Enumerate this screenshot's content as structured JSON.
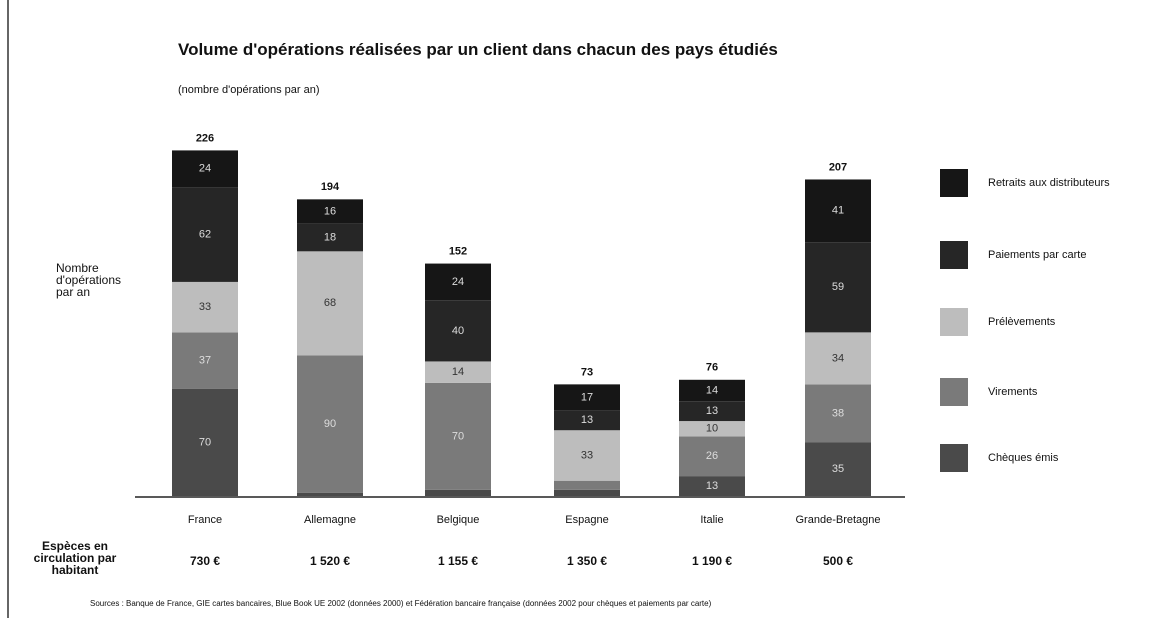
{
  "chart_data": {
    "type": "stacked_bar",
    "title": "Volume d'opérations réalisées par un client dans chacun des pays étudiés",
    "subtitle": "(nombre d'opérations par an)",
    "y_label": "Nombre d'opérations par an",
    "categories": [
      "France",
      "Allemagne",
      "Belgique",
      "Espagne",
      "Italie",
      "Grande-Bretagne"
    ],
    "totals": [
      226,
      194,
      152,
      73,
      76,
      207
    ],
    "series": [
      {
        "name": "Chèques émis",
        "color": "#4a4a4a",
        "values": [
          70,
          2,
          4,
          4,
          13,
          35
        ]
      },
      {
        "name": "Virements",
        "color": "#7a7a7a",
        "values": [
          37,
          90,
          70,
          6,
          26,
          38
        ]
      },
      {
        "name": "Prélèvements",
        "color": "#bdbdbd",
        "values": [
          33,
          68,
          14,
          33,
          10,
          34
        ]
      },
      {
        "name": "Paiements par carte",
        "color": "#262626",
        "values": [
          62,
          18,
          40,
          13,
          13,
          59
        ]
      },
      {
        "name": "Retraits aux distributeurs",
        "color": "#161616",
        "values": [
          24,
          16,
          24,
          17,
          14,
          41
        ]
      }
    ],
    "ylim": [
      0,
      240
    ],
    "cash_label": "Espèces en circulation par habitant",
    "cash_values": [
      "730 €",
      "1 520 €",
      "1 155 €",
      "1 350 €",
      "1 190 €",
      "500 €"
    ],
    "source": "Sources : Banque de France, GIE cartes bancaires, Blue Book UE 2002 (données 2000) et Fédération bancaire française (données 2002 pour chèques et paiements par carte)"
  }
}
